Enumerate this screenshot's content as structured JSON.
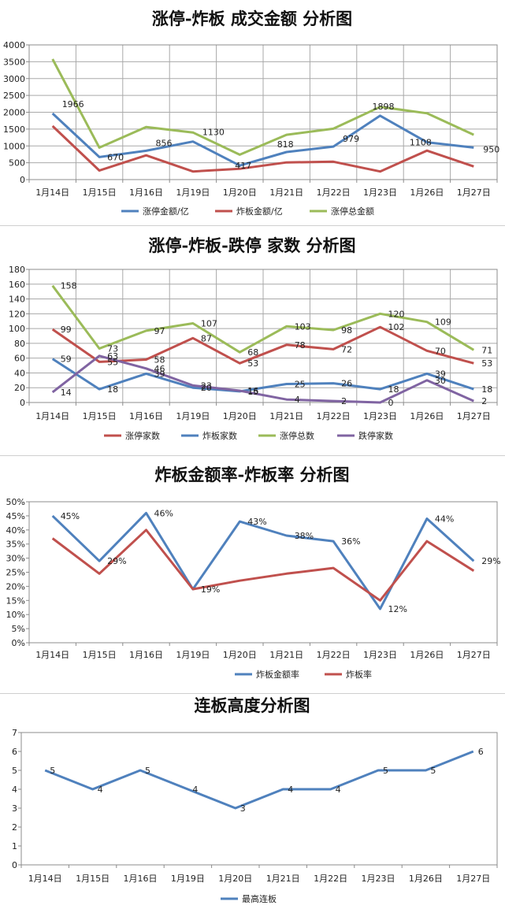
{
  "chart_data": [
    {
      "type": "line",
      "title": "涨停-炸板 成交金额 分析图",
      "categories": [
        "1月14日",
        "1月15日",
        "1月16日",
        "1月19日",
        "1月20日",
        "1月21日",
        "1月22日",
        "1月23日",
        "1月26日",
        "1月27日"
      ],
      "ylim": [
        0,
        4000
      ],
      "yticks": [
        0,
        500,
        1000,
        1500,
        2000,
        2500,
        3000,
        3500,
        4000
      ],
      "grid": true,
      "legend": "bottom",
      "series": [
        {
          "name": "涨停金额/亿",
          "color": "#4f81bd",
          "values": [
            1966,
            670,
            856,
            1130,
            417,
            818,
            979,
            1898,
            1108,
            950
          ],
          "labels": [
            "1966",
            "670",
            "856",
            "1130",
            "417",
            "818",
            "979",
            "1898",
            "1108",
            "950"
          ]
        },
        {
          "name": "炸板金额/亿",
          "color": "#c0504d",
          "values": [
            1590,
            270,
            720,
            240,
            320,
            510,
            530,
            240,
            860,
            390
          ],
          "labels": []
        },
        {
          "name": "涨停总金额",
          "color": "#9bbb59",
          "values": [
            3580,
            950,
            1560,
            1400,
            740,
            1330,
            1510,
            2160,
            1970,
            1330
          ],
          "labels": []
        }
      ]
    },
    {
      "type": "line",
      "title": "涨停-炸板-跌停 家数 分析图",
      "categories": [
        "1月14日",
        "1月15日",
        "1月16日",
        "1月19日",
        "1月20日",
        "1月21日",
        "1月22日",
        "1月23日",
        "1月26日",
        "1月27日"
      ],
      "ylim": [
        0,
        180
      ],
      "yticks": [
        0,
        20,
        40,
        60,
        80,
        100,
        120,
        140,
        160,
        180
      ],
      "grid": true,
      "legend": "bottom",
      "series": [
        {
          "name": "涨停家数",
          "color": "#c0504d",
          "values": [
            99,
            55,
            58,
            87,
            53,
            78,
            72,
            102,
            70,
            53
          ],
          "labels": [
            "99",
            "55",
            "58",
            "87",
            "53",
            "78",
            "72",
            "102",
            "70",
            "53"
          ]
        },
        {
          "name": "炸板家数",
          "color": "#4f81bd",
          "values": [
            59,
            18,
            39,
            20,
            15,
            25,
            26,
            18,
            39,
            18
          ],
          "labels": [
            "59",
            "18",
            "39",
            "20",
            "15",
            "25",
            "26",
            "18",
            "39",
            "18"
          ]
        },
        {
          "name": "涨停总数",
          "color": "#9bbb59",
          "values": [
            158,
            73,
            97,
            107,
            68,
            103,
            98,
            120,
            109,
            71
          ],
          "labels": [
            "158",
            "73",
            "97",
            "107",
            "68",
            "103",
            "98",
            "120",
            "109",
            "71"
          ]
        },
        {
          "name": "跌停家数",
          "color": "#8064a2",
          "values": [
            14,
            63,
            46,
            23,
            16,
            4,
            2,
            0,
            30,
            2
          ],
          "labels": [
            "14",
            "63",
            "46",
            "23",
            "16",
            "4",
            "2",
            "0",
            "30",
            "2"
          ]
        }
      ]
    },
    {
      "type": "line",
      "title": "炸板金额率-炸板率 分析图",
      "categories": [
        "1月14日",
        "1月15日",
        "1月16日",
        "1月19日",
        "1月20日",
        "1月21日",
        "1月22日",
        "1月23日",
        "1月26日",
        "1月27日"
      ],
      "ylim": [
        0,
        0.5
      ],
      "yticks": [
        "0%",
        "5%",
        "10%",
        "15%",
        "20%",
        "25%",
        "30%",
        "35%",
        "40%",
        "45%",
        "50%"
      ],
      "grid": false,
      "legend": "bottom",
      "series": [
        {
          "name": "炸板金额率",
          "color": "#4f81bd",
          "values": [
            0.45,
            0.29,
            0.46,
            0.19,
            0.43,
            0.38,
            0.36,
            0.12,
            0.44,
            0.29
          ],
          "labels": [
            "45%",
            "29%",
            "46%",
            "19%",
            "43%",
            "38%",
            "36%",
            "12%",
            "44%",
            "29%"
          ]
        },
        {
          "name": "炸板率",
          "color": "#c0504d",
          "values": [
            0.37,
            0.245,
            0.4,
            0.19,
            0.22,
            0.245,
            0.265,
            0.15,
            0.36,
            0.255
          ],
          "labels": []
        }
      ]
    },
    {
      "type": "line",
      "title": "连板高度分析图",
      "categories": [
        "1月14日",
        "1月15日",
        "1月16日",
        "1月19日",
        "1月20日",
        "1月21日",
        "1月22日",
        "1月23日",
        "1月26日",
        "1月27日"
      ],
      "ylim": [
        0,
        7
      ],
      "yticks": [
        0,
        1,
        2,
        3,
        4,
        5,
        6,
        7
      ],
      "grid": false,
      "legend": "bottom",
      "series": [
        {
          "name": "最高连板",
          "color": "#4f81bd",
          "values": [
            5,
            4,
            5,
            4,
            3,
            4,
            4,
            5,
            5,
            6
          ],
          "labels": [
            "5",
            "4",
            "5",
            "4",
            "3",
            "4",
            "4",
            "5",
            "5",
            "6"
          ]
        }
      ]
    }
  ]
}
